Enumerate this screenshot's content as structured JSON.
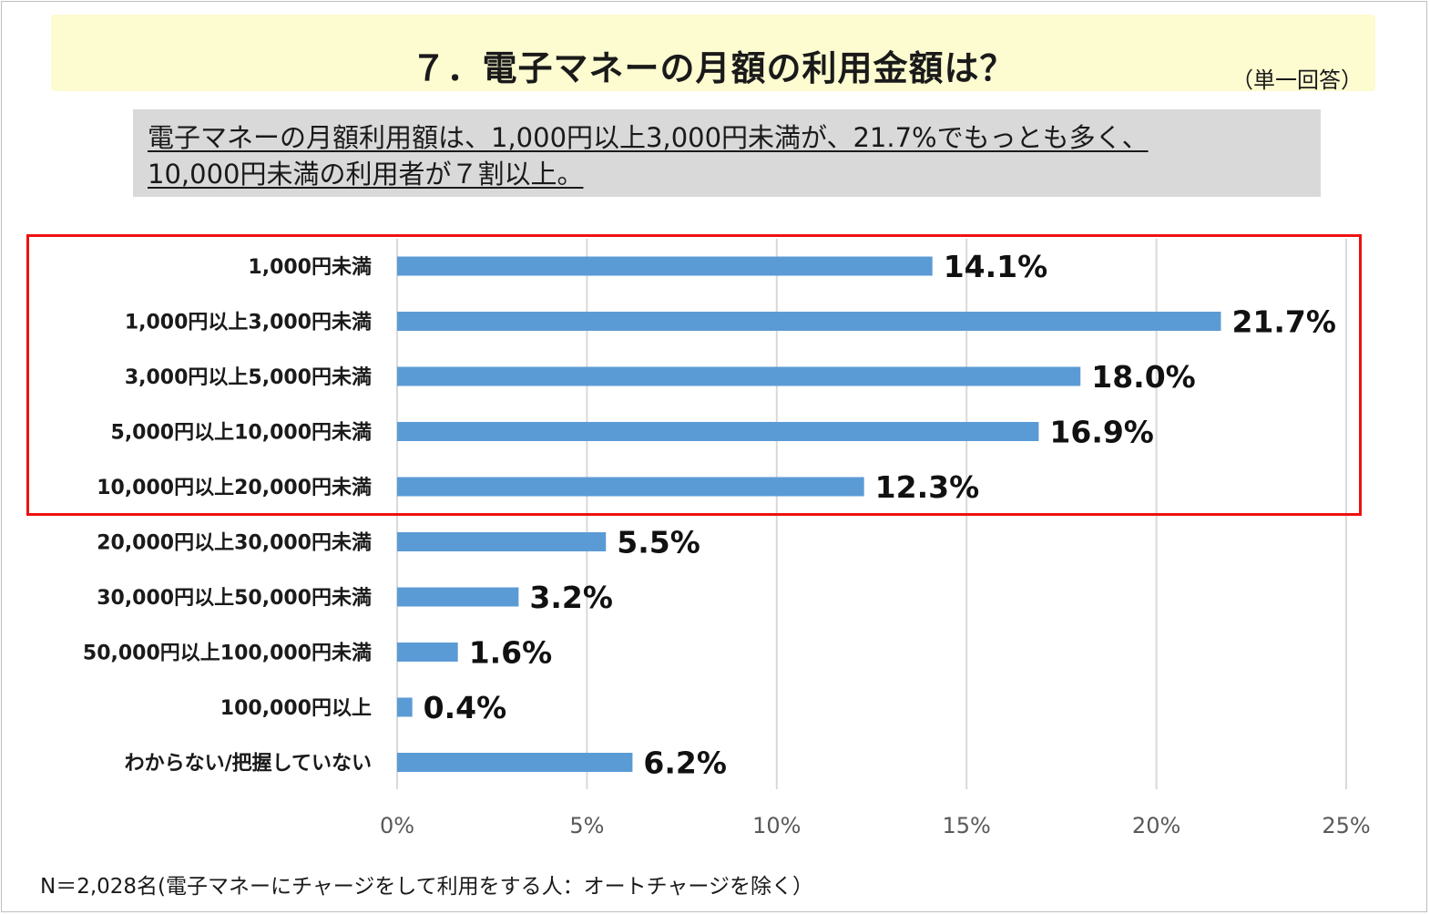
{
  "header": {
    "title": "７．電子マネーの月額の利用金額は？",
    "answer_type": "（単一回答）"
  },
  "summary": {
    "line1": "電子マネーの月額利用額は、1,000円以上3,000円未満が、21.7%でもっとも多く、",
    "line2": "10,000円未満の利用者が７割以上。"
  },
  "note": "N＝2,028名(電子マネーにチャージをして利用をする人：オートチャージを除く）",
  "colors": {
    "bar": "#5b9bd5",
    "highlight_border": "#ee1111",
    "title_background": "#fdfbd0",
    "summary_background": "#d9d9d9",
    "gridline": "#d9d9d9"
  },
  "chart_data": {
    "type": "bar",
    "orientation": "horizontal",
    "categories": [
      "1,000円未満",
      "1,000円以上3,000円未満",
      "3,000円以上5,000円未満",
      "5,000円以上10,000円未満",
      "10,000円以上20,000円未満",
      "20,000円以上30,000円未満",
      "30,000円以上50,000円未満",
      "50,000円以上100,000円未満",
      "100,000円以上",
      "わからない/把握していない"
    ],
    "values": [
      14.1,
      21.7,
      18.0,
      16.9,
      12.3,
      5.5,
      3.2,
      1.6,
      0.4,
      6.2
    ],
    "value_labels": [
      "14.1%",
      "21.7%",
      "18.0%",
      "16.9%",
      "12.3%",
      "5.5%",
      "3.2%",
      "1.6%",
      "0.4%",
      "6.2%"
    ],
    "xlim": [
      0,
      25
    ],
    "xticks": [
      0,
      5,
      10,
      15,
      20,
      25
    ],
    "xtick_labels": [
      "0%",
      "5%",
      "10%",
      "15%",
      "20%",
      "25%"
    ],
    "grid": "vertical",
    "highlighted_categories": [
      0,
      1,
      2,
      3,
      4
    ]
  }
}
